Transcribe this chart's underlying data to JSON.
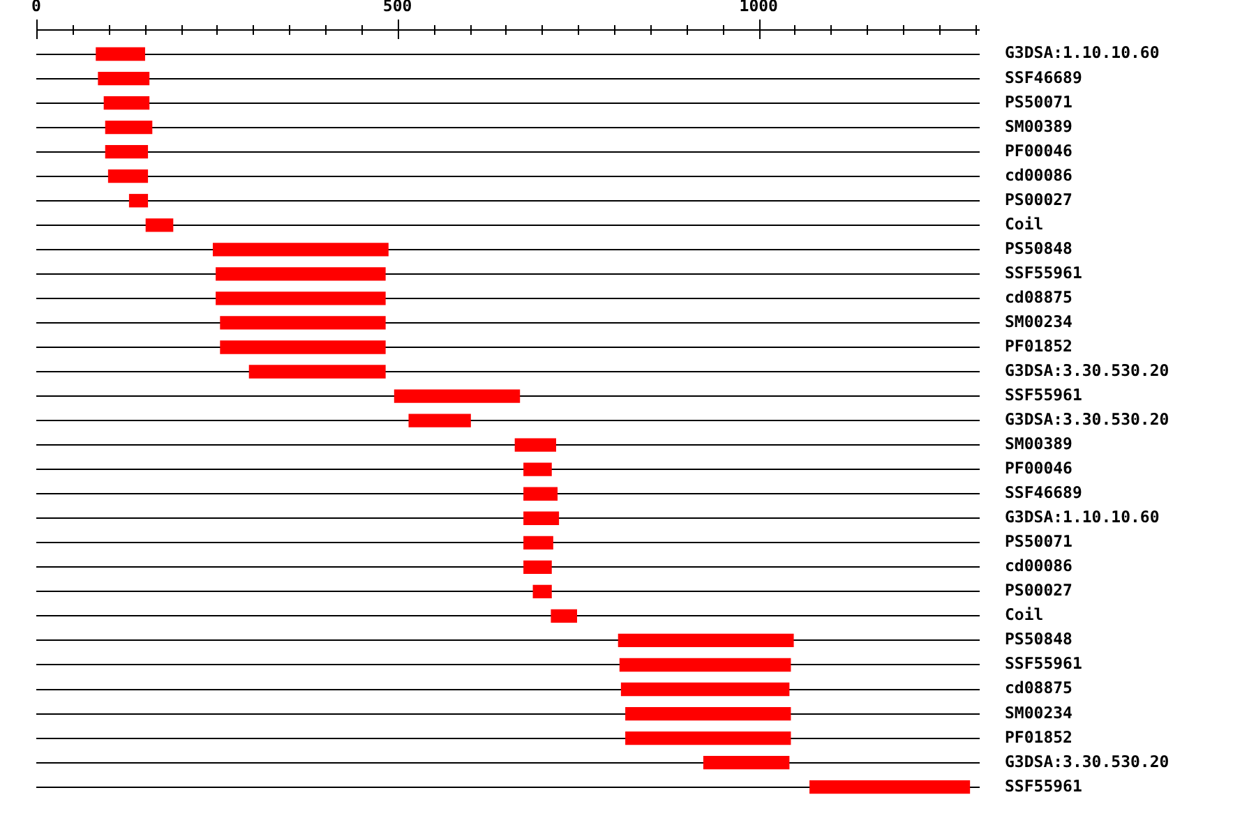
{
  "chart_data": {
    "type": "bar",
    "orientation": "horizontal",
    "categories": [
      "G3DSA:1.10.10.60",
      "SSF46689",
      "PS50071",
      "SM00389",
      "PF00046",
      "cd00086",
      "PS00027",
      "Coil",
      "PS50848",
      "SSF55961",
      "cd08875",
      "SM00234",
      "PF01852",
      "G3DSA:3.30.530.20",
      "SSF55961",
      "G3DSA:3.30.530.20",
      "SM00389",
      "PF00046",
      "SSF46689",
      "G3DSA:1.10.10.60",
      "PS50071",
      "cd00086",
      "PS00027",
      "Coil",
      "PS50848",
      "SSF55961",
      "cd08875",
      "SM00234",
      "PF01852",
      "G3DSA:3.30.530.20",
      "SSF55961"
    ],
    "base": [
      83,
      86,
      94,
      96,
      96,
      100,
      129,
      152,
      245,
      249,
      249,
      255,
      255,
      295,
      496,
      516,
      663,
      675,
      675,
      675,
      675,
      675,
      688,
      713,
      806,
      808,
      810,
      816,
      816,
      924,
      1071
    ],
    "values": [
      67,
      70,
      62,
      64,
      58,
      54,
      25,
      37,
      242,
      234,
      234,
      228,
      228,
      188,
      173,
      85,
      56,
      38,
      46,
      48,
      40,
      38,
      25,
      35,
      242,
      236,
      232,
      228,
      228,
      118,
      221
    ],
    "color": "#ff0000",
    "xlim": [
      0,
      1306
    ],
    "xticks": [
      0,
      {
        "value": 50,
        "label": null
      },
      {
        "value": 100,
        "label": null
      },
      {
        "value": 150,
        "label": null
      },
      {
        "value": 200,
        "label": null
      },
      {
        "value": 250,
        "label": null
      },
      {
        "value": 300,
        "label": null
      },
      {
        "value": 350,
        "label": null
      },
      {
        "value": 400,
        "label": null
      },
      {
        "value": 450,
        "label": null
      },
      500,
      {
        "value": 550,
        "label": null
      },
      {
        "value": 600,
        "label": null
      },
      {
        "value": 650,
        "label": null
      },
      {
        "value": 700,
        "label": null
      },
      {
        "value": 750,
        "label": null
      },
      {
        "value": 800,
        "label": null
      },
      {
        "value": 850,
        "label": null
      },
      {
        "value": 900,
        "label": null
      },
      {
        "value": 950,
        "label": null
      },
      1000,
      {
        "value": 1050,
        "label": null
      },
      {
        "value": 1100,
        "label": null
      },
      {
        "value": 1150,
        "label": null
      },
      {
        "value": 1200,
        "label": null
      },
      {
        "value": 1250,
        "label": null
      },
      {
        "value": 1300,
        "label": null
      }
    ],
    "grid": "y"
  }
}
